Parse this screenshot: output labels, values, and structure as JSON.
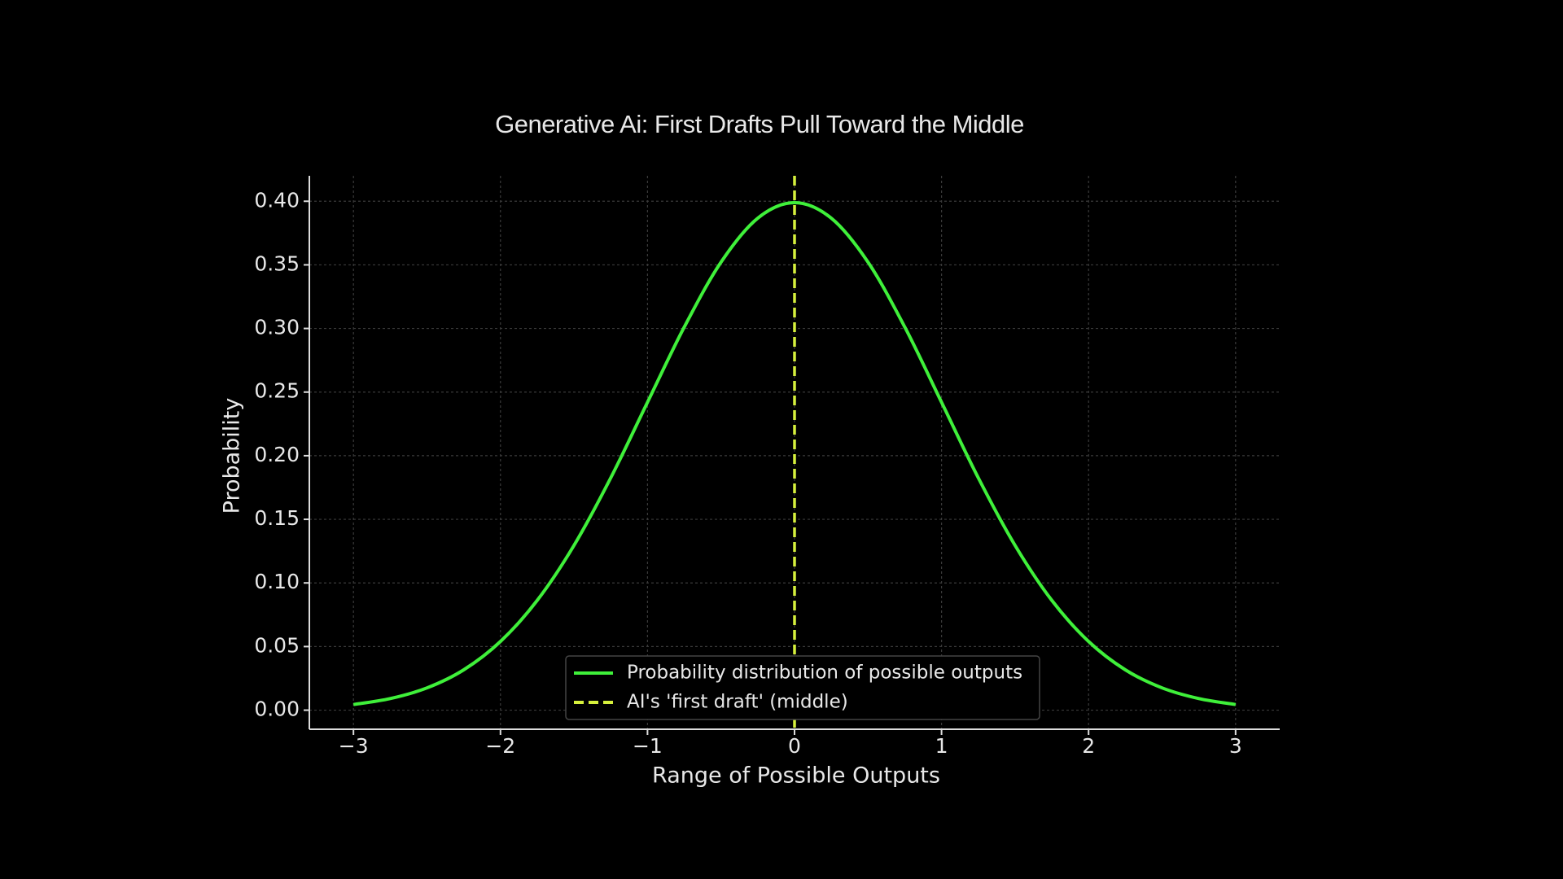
{
  "chart_data": {
    "type": "line",
    "title": "Generative Ai: First Drafts Pull Toward the Middle",
    "x_label": "Range of Possible Outputs",
    "y_label": "Probability",
    "x": [
      -3,
      -2.75,
      -2.5,
      -2.25,
      -2,
      -1.75,
      -1.5,
      -1.25,
      -1,
      -0.75,
      -0.5,
      -0.25,
      0,
      0.25,
      0.5,
      0.75,
      1,
      1.25,
      1.5,
      1.75,
      2,
      2.25,
      2.5,
      2.75,
      3
    ],
    "series": [
      {
        "name": "Probability distribution of possible outputs",
        "color": "#3ff03a",
        "values": [
          0.0044,
          0.0091,
          0.0175,
          0.0317,
          0.054,
          0.0863,
          0.1295,
          0.1826,
          0.242,
          0.3011,
          0.3521,
          0.3867,
          0.3989,
          0.3867,
          0.3521,
          0.3011,
          0.242,
          0.1826,
          0.1295,
          0.0863,
          0.054,
          0.0317,
          0.0175,
          0.0091,
          0.0044
        ]
      }
    ],
    "vline": {
      "name": "AI's 'first draft' (middle)",
      "color": "#d6f03c",
      "x": 0
    },
    "xlim": [
      -3.3,
      3.3
    ],
    "ylim": [
      -0.015,
      0.42
    ],
    "xticks": [
      {
        "value": -3,
        "label": "−3"
      },
      {
        "value": -2,
        "label": "−2"
      },
      {
        "value": -1,
        "label": "−1"
      },
      0,
      1,
      2,
      3
    ],
    "yticks": [
      {
        "value": 0,
        "label": "0.00"
      },
      0.05,
      {
        "value": 0.1,
        "label": "0.10"
      },
      0.15,
      {
        "value": 0.2,
        "label": "0.20"
      },
      0.25,
      {
        "value": 0.3,
        "label": "0.30"
      },
      0.35,
      {
        "value": 0.4,
        "label": "0.40"
      }
    ],
    "grid": true,
    "legend": "lower center"
  }
}
